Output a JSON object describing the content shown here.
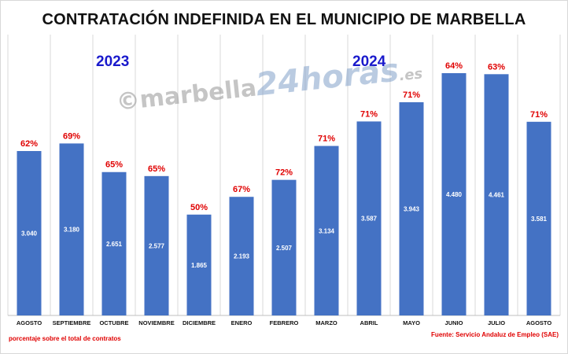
{
  "title": "CONTRATACIÓN INDEFINIDA EN EL MUNICIPIO DE MARBELLA",
  "years": [
    "2023",
    "2024"
  ],
  "watermark": {
    "copy": "©",
    "part1": "marbella",
    "part2": "24",
    "part3": "horas",
    "part4": ".es"
  },
  "note": "porcentaje sobre el total de contratos",
  "source": "Fuente: Servicio Andaluz de Empleo (SAE)",
  "colors": {
    "bar": "#4472c4",
    "pct": "#e00000",
    "year": "#1a1acc"
  },
  "chart_data": {
    "type": "bar",
    "categories": [
      "AGOSTO",
      "SEPTIEMBRE",
      "OCTUBRE",
      "NOVIEMBRE",
      "DICIEMBRE",
      "ENERO",
      "FEBRERO",
      "MARZO",
      "ABRIL",
      "MAYO",
      "JUNIO",
      "JULIO",
      "AGOSTO"
    ],
    "values": [
      3040,
      3180,
      2651,
      2577,
      1865,
      2193,
      2507,
      3134,
      3587,
      3943,
      4480,
      4461,
      3581
    ],
    "value_labels": [
      "3.040",
      "3.180",
      "2.651",
      "2.577",
      "1.865",
      "2.193",
      "2.507",
      "3.134",
      "3.587",
      "3.943",
      "4.480",
      "4.461",
      "3.581"
    ],
    "percent_labels": [
      "62%",
      "69%",
      "65%",
      "65%",
      "50%",
      "67%",
      "72%",
      "71%",
      "71%",
      "71%",
      "64%",
      "63%",
      "71%"
    ],
    "ylim": [
      0,
      4800
    ],
    "grid": "vertical"
  }
}
